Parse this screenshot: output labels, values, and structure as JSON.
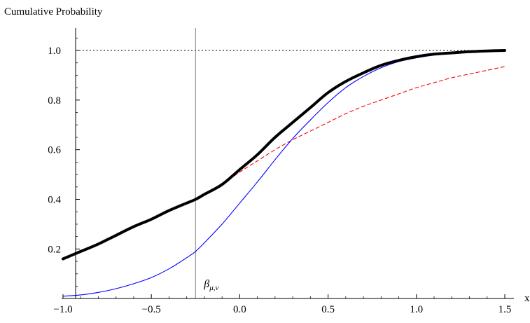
{
  "chart_data": {
    "type": "line",
    "title": "",
    "ylabel": "Cumulative Probability",
    "xlabel": "x",
    "xlim": [
      -1.0,
      1.5
    ],
    "ylim": [
      0,
      1.1
    ],
    "x_ticks": [
      -1.0,
      -0.5,
      0.0,
      0.5,
      1.0,
      1.5
    ],
    "x_tick_labels": [
      "−1.0",
      "−0.5",
      "0.0",
      "0.5",
      "1.0",
      "1.5"
    ],
    "y_ticks": [
      0.2,
      0.4,
      0.6,
      0.8,
      1.0
    ],
    "y_tick_labels": [
      "0.2",
      "0.4",
      "0.6",
      "0.8",
      "1.0"
    ],
    "grid": false,
    "reference_lines": [
      {
        "orientation": "horizontal",
        "y": 1.0,
        "style": "dotted",
        "color": "#000000"
      },
      {
        "orientation": "vertical",
        "x": -0.25,
        "style": "solid",
        "color": "#808080",
        "label": "β",
        "label_sub": "μ,ν"
      }
    ],
    "series": [
      {
        "style": "solid-thick",
        "color": "#000000",
        "x": [
          -1.0,
          -0.9,
          -0.8,
          -0.7,
          -0.6,
          -0.5,
          -0.4,
          -0.3,
          -0.25,
          -0.2,
          -0.1,
          0.0,
          0.1,
          0.2,
          0.3,
          0.4,
          0.5,
          0.6,
          0.7,
          0.8,
          0.9,
          1.0,
          1.1,
          1.2,
          1.3,
          1.4,
          1.5
        ],
        "y": [
          0.16,
          0.19,
          0.22,
          0.255,
          0.29,
          0.32,
          0.355,
          0.385,
          0.4,
          0.42,
          0.46,
          0.52,
          0.58,
          0.65,
          0.71,
          0.77,
          0.83,
          0.875,
          0.91,
          0.94,
          0.96,
          0.975,
          0.985,
          0.99,
          0.995,
          0.998,
          1.0
        ]
      },
      {
        "style": "solid-thin",
        "color": "#0000ff",
        "x": [
          -1.0,
          -0.9,
          -0.8,
          -0.7,
          -0.6,
          -0.5,
          -0.4,
          -0.3,
          -0.25,
          -0.2,
          -0.1,
          0.0,
          0.1,
          0.2,
          0.3,
          0.4,
          0.5,
          0.6,
          0.7,
          0.8,
          0.9,
          1.0,
          1.1,
          1.2,
          1.3,
          1.4,
          1.5
        ],
        "y": [
          0.01,
          0.015,
          0.025,
          0.04,
          0.06,
          0.085,
          0.12,
          0.165,
          0.19,
          0.225,
          0.3,
          0.385,
          0.47,
          0.56,
          0.645,
          0.72,
          0.79,
          0.85,
          0.895,
          0.93,
          0.955,
          0.97,
          0.982,
          0.99,
          0.995,
          0.998,
          1.0
        ]
      },
      {
        "style": "dashed",
        "color": "#ff0000",
        "x": [
          -0.15,
          -0.1,
          0.0,
          0.1,
          0.2,
          0.3,
          0.4,
          0.5,
          0.6,
          0.7,
          0.8,
          0.9,
          1.0,
          1.1,
          1.2,
          1.3,
          1.4,
          1.5
        ],
        "y": [
          0.44,
          0.46,
          0.51,
          0.555,
          0.6,
          0.64,
          0.675,
          0.71,
          0.745,
          0.775,
          0.8,
          0.825,
          0.85,
          0.87,
          0.89,
          0.905,
          0.92,
          0.935
        ]
      }
    ]
  }
}
